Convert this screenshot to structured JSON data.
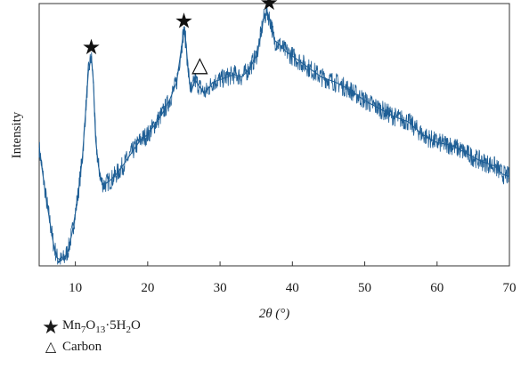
{
  "chart_data": {
    "type": "line",
    "xlabel": "2θ (°)",
    "ylabel": "Intensity",
    "xlim": [
      5,
      70
    ],
    "ylim": [
      0,
      1
    ],
    "x_ticks": [
      10,
      20,
      30,
      40,
      50,
      60,
      70
    ],
    "y_ticks_shown": false,
    "grid": false,
    "line_color": "#1f5f96",
    "series": [
      {
        "name": "",
        "x": [
          5,
          6,
          7,
          7.5,
          8,
          8.5,
          9,
          9.5,
          10,
          10.5,
          11,
          11.5,
          11.8,
          12.2,
          12.5,
          12.8,
          13.2,
          13.6,
          14,
          15,
          16,
          17,
          18,
          19,
          20,
          21,
          22,
          23,
          24,
          24.5,
          25,
          25.3,
          25.6,
          26,
          26.5,
          27,
          27.5,
          28,
          29,
          30,
          31,
          32,
          33,
          34,
          35,
          35.5,
          36,
          36.5,
          37,
          37.5,
          38,
          39,
          40,
          42,
          44,
          46,
          48,
          50,
          52,
          54,
          56,
          58,
          60,
          62,
          64,
          66,
          68,
          69,
          70
        ],
        "y": [
          0.45,
          0.25,
          0.08,
          0.03,
          0.02,
          0.03,
          0.06,
          0.12,
          0.2,
          0.3,
          0.42,
          0.62,
          0.74,
          0.8,
          0.7,
          0.48,
          0.38,
          0.32,
          0.31,
          0.33,
          0.36,
          0.4,
          0.44,
          0.48,
          0.5,
          0.54,
          0.58,
          0.63,
          0.7,
          0.8,
          0.9,
          0.85,
          0.74,
          0.66,
          0.71,
          0.69,
          0.67,
          0.66,
          0.7,
          0.71,
          0.72,
          0.73,
          0.72,
          0.75,
          0.8,
          0.86,
          0.94,
          0.97,
          0.93,
          0.86,
          0.85,
          0.82,
          0.8,
          0.76,
          0.72,
          0.7,
          0.67,
          0.63,
          0.6,
          0.57,
          0.55,
          0.5,
          0.47,
          0.46,
          0.43,
          0.4,
          0.38,
          0.35,
          0.34
        ]
      }
    ],
    "annotations": [
      {
        "symbol": "★",
        "x": 12.2,
        "y": 0.8,
        "label": "Mn7O13·5H2O"
      },
      {
        "symbol": "★",
        "x": 25.0,
        "y": 0.9,
        "label": "Mn7O13·5H2O"
      },
      {
        "symbol": "★",
        "x": 36.8,
        "y": 0.97,
        "label": "Mn7O13·5H2O"
      },
      {
        "symbol": "△",
        "x": 27.2,
        "y": 0.72,
        "label": "Carbon"
      }
    ]
  },
  "legend": {
    "items": [
      {
        "symbol": "★",
        "base": "Mn",
        "sub1": "7",
        "mid1": "O",
        "sub2": "13",
        "mid2": "·5H",
        "sub3": "2",
        "mid3": "O"
      },
      {
        "symbol": "△",
        "text": "Carbon"
      }
    ]
  }
}
